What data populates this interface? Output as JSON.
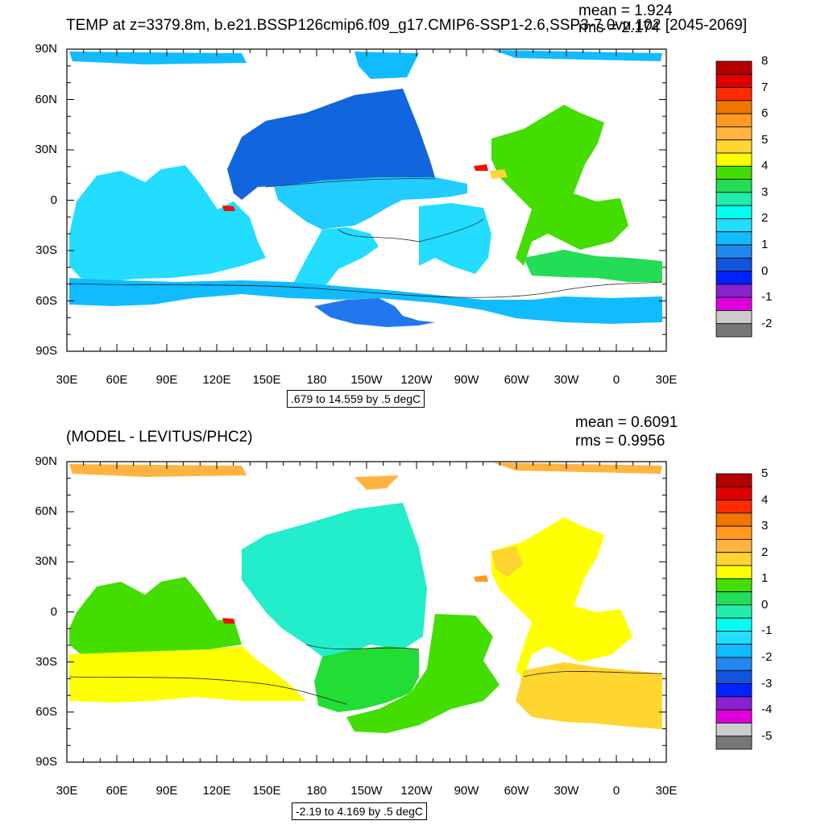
{
  "panels": [
    {
      "title": "TEMP at z=3379.8m, b.e21.BSSP126cmip6.f09_g17.CMIP6-SSP1-2.6,SSP3-7.0vu.102 [2045-2069]",
      "mean_text": "mean = 1.924",
      "rms_text": "rms = 2.174",
      "contour_info": ".679 to 14.559 by .5 degC",
      "lat_labels": [
        "90N",
        "60N",
        "30N",
        "0",
        "30S",
        "60S",
        "90S"
      ],
      "lon_labels": [
        "30E",
        "60E",
        "90E",
        "120E",
        "150E",
        "180",
        "150W",
        "120W",
        "90W",
        "60W",
        "30W",
        "0",
        "30E"
      ],
      "colorbar": {
        "labels": [
          "8",
          "7",
          "6",
          "5",
          "4",
          "3",
          "2",
          "1",
          "0",
          "-1",
          "-2"
        ],
        "colors": [
          "#b30000",
          "#e00000",
          "#ff2a00",
          "#ee7700",
          "#ff9922",
          "#ffb340",
          "#ffd530",
          "#ffff00",
          "#44dd00",
          "#22dd55",
          "#22eeaa",
          "#00ffee",
          "#22ddff",
          "#11bbff",
          "#2288ee",
          "#1155dd",
          "#0022ff",
          "#8822cc",
          "#dd00dd",
          "#cccccc",
          "#777777"
        ]
      },
      "field_colors": {
        "arctic": "#11bbff",
        "north_pacific": "#1166dd",
        "tropical_pacific": "#22ccff",
        "south_pacific": "#22ddff",
        "indian": "#22ddff",
        "southern_band": "#11bbff",
        "southern_deep": "#2277ee",
        "atlantic": "#44dd00",
        "atlantic_south": "#22dd55",
        "hot_spot": "#ee1100",
        "warm_spot": "#ffd530"
      }
    },
    {
      "title": "(MODEL - LEVITUS/PHC2)",
      "mean_text": "mean = 0.6091",
      "rms_text": "rms = 0.9956",
      "contour_info": "-2.19 to 4.169 by .5 degC",
      "lat_labels": [
        "90N",
        "60N",
        "30N",
        "0",
        "30S",
        "60S",
        "90S"
      ],
      "lon_labels": [
        "30E",
        "60E",
        "90E",
        "120E",
        "150E",
        "180",
        "150W",
        "120W",
        "90W",
        "60W",
        "30W",
        "0",
        "30E"
      ],
      "colorbar": {
        "labels": [
          "5",
          "4",
          "3",
          "2",
          "1",
          "0",
          "-1",
          "-2",
          "-3",
          "-4",
          "-5"
        ],
        "colors": [
          "#b30000",
          "#e00000",
          "#ff2a00",
          "#ee7700",
          "#ff9922",
          "#ffb340",
          "#ffd530",
          "#ffff00",
          "#44dd00",
          "#22dd55",
          "#22eeaa",
          "#00ffee",
          "#22ddff",
          "#11bbff",
          "#2288ee",
          "#1155dd",
          "#0022ff",
          "#8822cc",
          "#dd00dd",
          "#cccccc",
          "#777777"
        ]
      },
      "field_colors": {
        "arctic": "#ffb340",
        "north_pacific": "#22eecc",
        "tropical_pacific": "#22eecc",
        "south_pacific": "#22dd33",
        "indian": "#44dd00",
        "southern_band": "#ffff00",
        "southern_deep": "#44dd00",
        "atlantic": "#ffff00",
        "atlantic_south": "#ffd530",
        "hot_spot": "#ee1100",
        "warm_spot": "#ff9922"
      }
    }
  ]
}
